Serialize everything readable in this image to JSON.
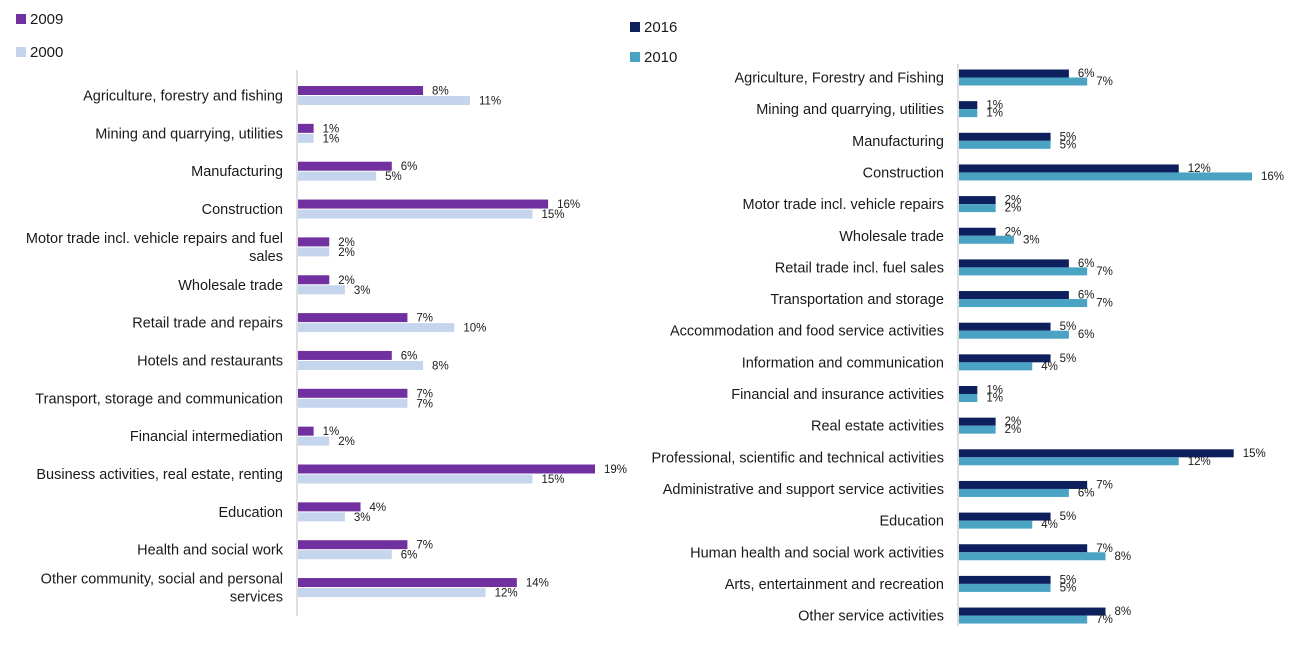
{
  "chart_data": [
    {
      "type": "bar",
      "orientation": "horizontal",
      "legend_position": "top-left",
      "value_format": "percent",
      "grid": false,
      "xlim": [
        0,
        19
      ],
      "categories": [
        [
          "Agriculture, forestry and fishing"
        ],
        [
          "Mining and quarrying, utilities"
        ],
        [
          "Manufacturing"
        ],
        [
          "Construction"
        ],
        [
          "Motor trade incl. vehicle repairs and fuel",
          "sales"
        ],
        [
          "Wholesale trade"
        ],
        [
          "Retail trade and repairs"
        ],
        [
          "Hotels and restaurants"
        ],
        [
          "Transport, storage and communication"
        ],
        [
          "Financial intermediation"
        ],
        [
          "Business activities, real estate, renting"
        ],
        [
          "Education"
        ],
        [
          "Health and social work"
        ],
        [
          "Other community, social and personal",
          "services"
        ]
      ],
      "series": [
        {
          "name": "2009",
          "color": "#7030a0",
          "values": [
            8,
            1,
            6,
            16,
            2,
            2,
            7,
            6,
            7,
            1,
            19,
            4,
            7,
            14
          ]
        },
        {
          "name": "2000",
          "color": "#c5d5ed",
          "values": [
            11,
            1,
            5,
            15,
            2,
            3,
            10,
            8,
            7,
            2,
            15,
            3,
            6,
            12
          ]
        }
      ]
    },
    {
      "type": "bar",
      "orientation": "horizontal",
      "legend_position": "top-left",
      "value_format": "percent",
      "grid": false,
      "xlim": [
        0,
        16
      ],
      "categories": [
        [
          "Agriculture, Forestry and Fishing"
        ],
        [
          "Mining and quarrying, utilities"
        ],
        [
          "Manufacturing"
        ],
        [
          "Construction"
        ],
        [
          "Motor trade incl. vehicle repairs"
        ],
        [
          "Wholesale trade"
        ],
        [
          "Retail trade incl. fuel sales"
        ],
        [
          "Transportation and storage"
        ],
        [
          "Accommodation and food service activities"
        ],
        [
          "Information and communication"
        ],
        [
          "Financial and insurance activities"
        ],
        [
          "Real estate activities"
        ],
        [
          "Professional, scientific and technical activities"
        ],
        [
          "Administrative and support service activities"
        ],
        [
          "Education"
        ],
        [
          "Human health and social work activities"
        ],
        [
          "Arts, entertainment and recreation"
        ],
        [
          "Other service activities"
        ]
      ],
      "series": [
        {
          "name": "2016",
          "color": "#0d1f5c",
          "values": [
            6,
            1,
            5,
            12,
            2,
            2,
            6,
            6,
            5,
            5,
            1,
            2,
            15,
            7,
            5,
            7,
            5,
            8
          ]
        },
        {
          "name": "2010",
          "color": "#4aa3c3",
          "values": [
            7,
            1,
            5,
            16,
            2,
            3,
            7,
            7,
            6,
            4,
            1,
            2,
            12,
            6,
            4,
            8,
            5,
            7
          ]
        }
      ]
    }
  ]
}
